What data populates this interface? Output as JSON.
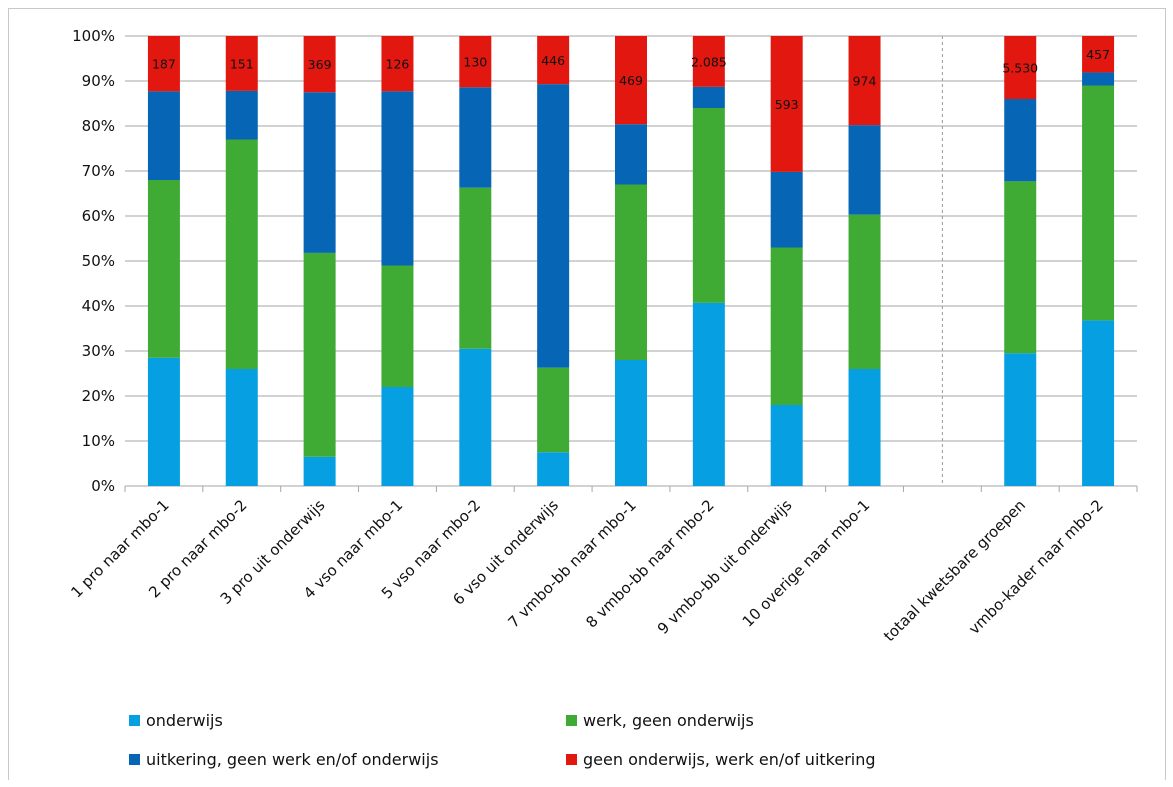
{
  "chart_data": {
    "type": "bar",
    "stacked": true,
    "ylim": [
      0,
      100
    ],
    "yticks": [
      "0%",
      "10%",
      "20%",
      "30%",
      "40%",
      "50%",
      "60%",
      "70%",
      "80%",
      "90%",
      "100%"
    ],
    "grid": true,
    "legend_position": "bottom",
    "categories": [
      "1 pro naar mbo-1",
      "2 pro naar mbo-2",
      "3 pro uit onderwijs",
      "4 vso naar mbo-1",
      "5 vso naar mbo-2",
      "6 vso uit onderwijs",
      "7 vmbo-bb naar mbo-1",
      "8 vmbo-bb naar mbo-2",
      "9 vmbo-bb uit onderwijs",
      "10 overige naar mbo-1",
      "",
      "totaal kwetsbare groepen",
      "vmbo-kader naar mbo-2"
    ],
    "series": [
      {
        "name": "onderwijs",
        "color": "#069fe2",
        "values": [
          28.5,
          26,
          6.5,
          22,
          30.5,
          7.5,
          28,
          40.7,
          18,
          26,
          null,
          29.5,
          36.8
        ]
      },
      {
        "name": "werk, geen onderwijs",
        "color": "#3fab35",
        "values": [
          39.5,
          51,
          45.3,
          27,
          35.8,
          18.8,
          39,
          43.3,
          35,
          34.3,
          null,
          38.2,
          52.2
        ]
      },
      {
        "name": "uitkering, geen werk en/of onderwijs",
        "color": "#0666b5",
        "values": [
          19.7,
          10.8,
          35.7,
          38.7,
          22.3,
          63,
          13.4,
          4.7,
          16.8,
          19.9,
          null,
          18.3,
          2.9
        ]
      },
      {
        "name": "geen onderwijs, werk en/of uitkering",
        "color": "#e2170f",
        "values": [
          12.3,
          12.2,
          12.5,
          12.3,
          11.4,
          10.7,
          19.6,
          11.3,
          30.2,
          19.8,
          null,
          14,
          8.1
        ]
      }
    ],
    "data_labels": [
      "187",
      "151",
      "369",
      "126",
      "130",
      "446",
      "469",
      "2.085",
      "593",
      "974",
      "",
      "5.530",
      "457"
    ]
  }
}
